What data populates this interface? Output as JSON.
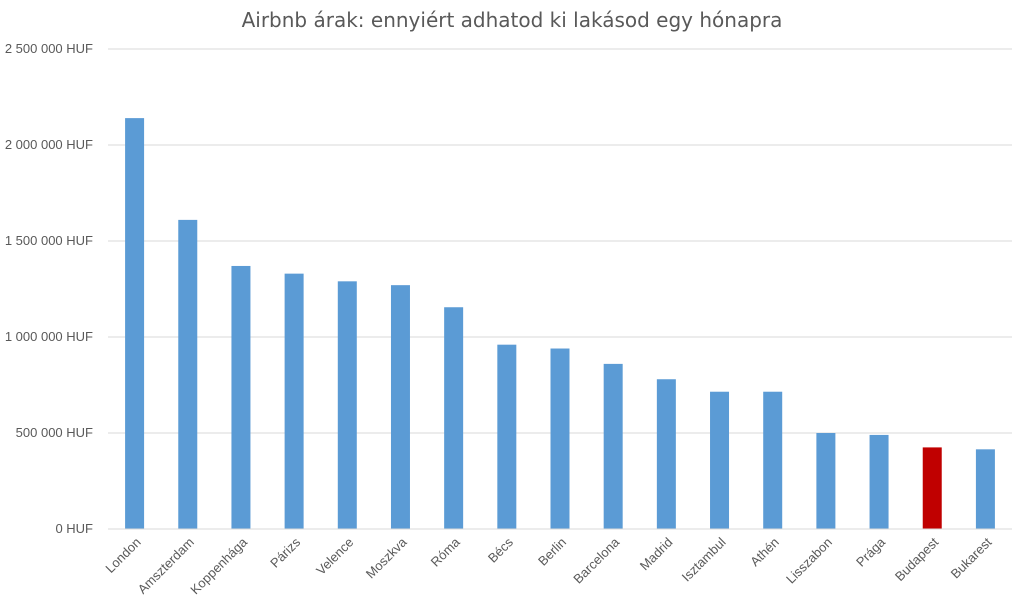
{
  "chart_data": {
    "type": "bar",
    "title": "Airbnb árak: ennyiért adhatod ki lakásod egy hónapra",
    "xlabel": "",
    "ylabel": "",
    "ylim": [
      0,
      2500000
    ],
    "y_ticks": [
      0,
      500000,
      1000000,
      1500000,
      2000000,
      2500000
    ],
    "y_tick_labels": [
      "0 HUF",
      "500 000 HUF",
      "1 000 000 HUF",
      "1 500 000 HUF",
      "2 000 000 HUF",
      "2 500 000 HUF"
    ],
    "grid": true,
    "legend": "none",
    "categories": [
      "London",
      "Amszterdam",
      "Koppenhága",
      "Párizs",
      "Velence",
      "Moszkva",
      "Róma",
      "Bécs",
      "Berlin",
      "Barcelona",
      "Madrid",
      "Isztambul",
      "Athén",
      "Lisszabon",
      "Prága",
      "Budapest",
      "Bukarest"
    ],
    "values": [
      2140000,
      1610000,
      1370000,
      1330000,
      1290000,
      1270000,
      1155000,
      960000,
      940000,
      860000,
      780000,
      715000,
      715000,
      500000,
      490000,
      425000,
      415000
    ],
    "bar_color": "#5B9BD5",
    "highlight_color": "#C00000",
    "highlight_category": "Budapest",
    "gridline_color": "#D9D9D9",
    "axis_text_color": "#595959"
  }
}
